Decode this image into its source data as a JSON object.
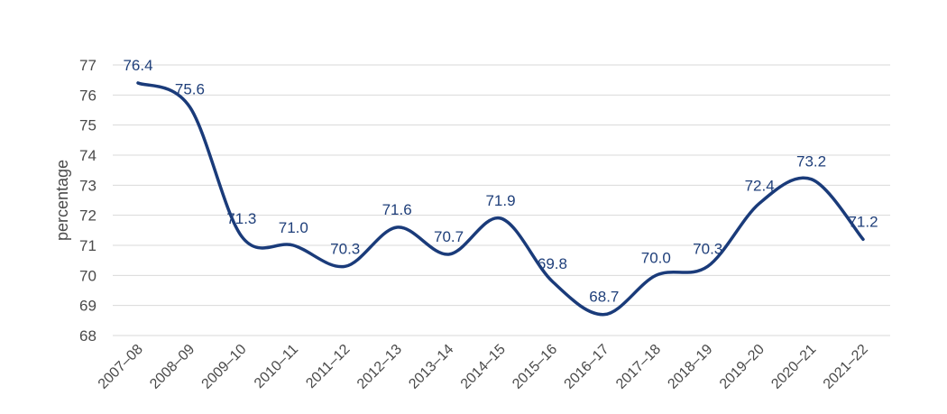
{
  "colors": {
    "line": "#1a3b7a",
    "label": "#1f3f7a",
    "grid": "#d9d9d9",
    "text": "#4a4a4a"
  },
  "chart_data": {
    "type": "line",
    "ylabel": "percentage",
    "xlabel": "",
    "title": "",
    "ylim": [
      68,
      77
    ],
    "yticks": [
      68,
      69,
      70,
      71,
      72,
      73,
      74,
      75,
      76,
      77
    ],
    "grid": true,
    "categories": [
      "2007–08",
      "2008–09",
      "2009–10",
      "2010–11",
      "2011–12",
      "2012–13",
      "2013–14",
      "2014–15",
      "2015–16",
      "2016–17",
      "2017–18",
      "2018–19",
      "2019–20",
      "2020–21",
      "2021–22"
    ],
    "series": [
      {
        "values": [
          76.4,
          75.6,
          71.3,
          71.0,
          70.3,
          71.6,
          70.7,
          71.9,
          69.8,
          68.7,
          70.0,
          70.3,
          72.4,
          73.2,
          71.2
        ],
        "labels": [
          "76.4",
          "75.6",
          "71.3",
          "71.0",
          "70.3",
          "71.6",
          "70.7",
          "71.9",
          "69.8",
          "68.7",
          "70.0",
          "70.3",
          "72.4",
          "73.2",
          "71.2"
        ]
      }
    ]
  }
}
